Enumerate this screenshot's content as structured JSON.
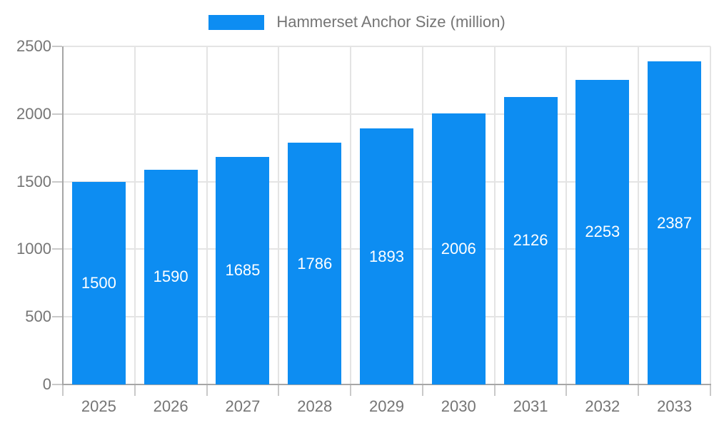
{
  "legend": {
    "label": "Hammerset Anchor Size (million)"
  },
  "chart_data": {
    "type": "bar",
    "title": "Hammerset Anchor Size (million)",
    "categories": [
      "2025",
      "2026",
      "2027",
      "2028",
      "2029",
      "2030",
      "2031",
      "2032",
      "2033"
    ],
    "values": [
      1500,
      1590,
      1685,
      1786,
      1893,
      2006,
      2126,
      2253,
      2387
    ],
    "xlabel": "",
    "ylabel": "",
    "ylim": [
      0,
      2500
    ],
    "yticks": [
      0,
      500,
      1000,
      1500,
      2000,
      2500
    ],
    "grid": true,
    "legend_position": "top-center",
    "bar_color": "#0D8DF2",
    "value_label_color": "#ffffff",
    "axis_label_color": "#757575",
    "gridline_color": "#E4E4E4",
    "axis_line_color": "#A6A6A6",
    "tick_color": "#C9C9C9",
    "background_color": "#ffffff"
  }
}
